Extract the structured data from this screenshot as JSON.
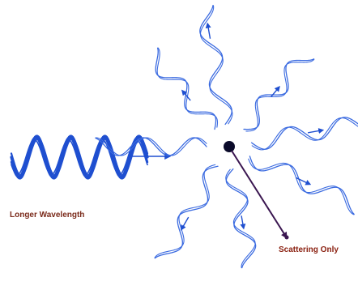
{
  "labels": {
    "incoming": "Longer Wavelength",
    "scattering": "Scattering Only"
  },
  "colors": {
    "incoming_wave": "#1f4fd0",
    "scattered_wave": "#3a6ae0",
    "arrow": "#1f4fd0",
    "particle": "#0a0a2a",
    "pointer_line": "#3a1650",
    "incoming_label": "#7a2a1a",
    "scattering_label": "#8a2010"
  },
  "icons": {
    "particle": "scattering-particle-dot",
    "wave": "sine-wave"
  }
}
